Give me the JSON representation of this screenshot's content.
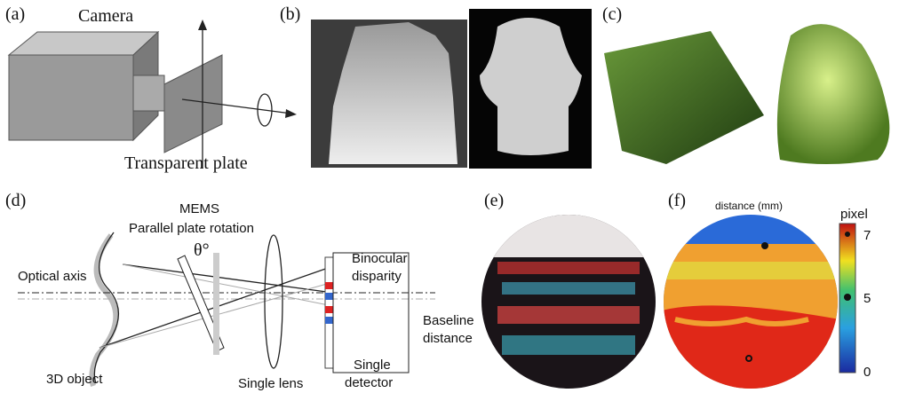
{
  "panel_a": {
    "label": "(a)",
    "camera": "Camera",
    "plate": "Transparent plate"
  },
  "panel_b": {
    "label": "(b)"
  },
  "panel_c": {
    "label": "(c)"
  },
  "panel_d": {
    "label": "(d)",
    "mems": "MEMS",
    "rotation": "Parallel plate rotation",
    "angle": "θ°",
    "optical_axis": "Optical axis",
    "object": "3D object",
    "lens": "Single lens",
    "disparity_1": "Binocular",
    "disparity_2": "disparity",
    "baseline_1": "Baseline",
    "baseline_2": "distance",
    "detector_1": "Single",
    "detector_2": "detector"
  },
  "panel_e": {
    "label": "(e)"
  },
  "panel_f": {
    "label": "(f)",
    "title": "distance (mm)",
    "colorbar_label": "pixel",
    "colorbar_ticks": [
      "7",
      "5",
      "0"
    ]
  }
}
